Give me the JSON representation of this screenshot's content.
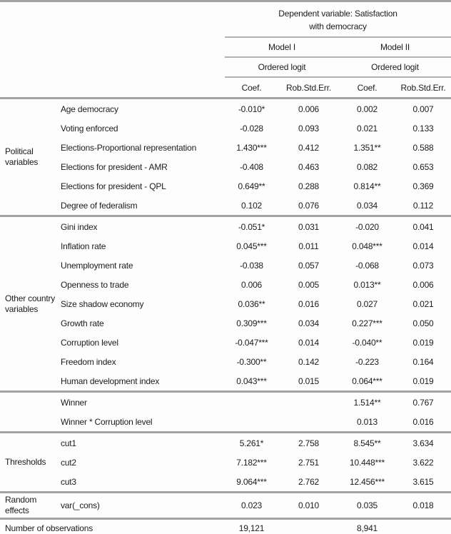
{
  "header": {
    "dep_var_line1": "Dependent variable: Satisfaction",
    "dep_var_line2": "with democracy",
    "models": [
      "Model I",
      "Model II"
    ],
    "estimators": [
      "Ordered logit",
      "Ordered logit"
    ],
    "stat_headers": [
      "Coef.",
      "Rob.Std.Err.",
      "Coef.",
      "Rob.Std.Err."
    ]
  },
  "sections": [
    {
      "group": "Political variables",
      "rows": [
        {
          "label": "Age democracy",
          "m1_coef": "-0.010*",
          "m1_se": "0.006",
          "m2_coef": "0.002",
          "m2_se": "0.007"
        },
        {
          "label": "Voting enforced",
          "m1_coef": "-0.028",
          "m1_se": "0.093",
          "m2_coef": "0.021",
          "m2_se": "0.133"
        },
        {
          "label": "Elections-Proportional representation",
          "m1_coef": "1.430***",
          "m1_se": "0.412",
          "m2_coef": "1.351**",
          "m2_se": "0.588"
        },
        {
          "label": "Elections for president - AMR",
          "m1_coef": "-0.408",
          "m1_se": "0.463",
          "m2_coef": "0.082",
          "m2_se": "0.653"
        },
        {
          "label": "Elections for president - QPL",
          "m1_coef": "0.649**",
          "m1_se": "0.288",
          "m2_coef": "0.814**",
          "m2_se": "0.369"
        },
        {
          "label": "Degree of federalism",
          "m1_coef": "0.102",
          "m1_se": "0.076",
          "m2_coef": "0.034",
          "m2_se": "0.112"
        }
      ]
    },
    {
      "group": "Other country variables",
      "rows": [
        {
          "label": "Gini index",
          "m1_coef": "-0.051*",
          "m1_se": "0.031",
          "m2_coef": "-0.020",
          "m2_se": "0.041"
        },
        {
          "label": "Inflation rate",
          "m1_coef": "0.045***",
          "m1_se": "0.011",
          "m2_coef": "0.048***",
          "m2_se": "0.014"
        },
        {
          "label": "Unemployment rate",
          "m1_coef": "-0.038",
          "m1_se": "0.057",
          "m2_coef": "-0.068",
          "m2_se": "0.073"
        },
        {
          "label": "Openness to trade",
          "m1_coef": "0.006",
          "m1_se": "0.005",
          "m2_coef": "0.013**",
          "m2_se": "0.006"
        },
        {
          "label": "Size shadow economy",
          "m1_coef": "0.036**",
          "m1_se": "0.016",
          "m2_coef": "0.027",
          "m2_se": "0.021"
        },
        {
          "label": "Growth rate",
          "m1_coef": "0.309***",
          "m1_se": "0.034",
          "m2_coef": "0.227***",
          "m2_se": "0.050"
        },
        {
          "label": "Corruption level",
          "m1_coef": "-0.047***",
          "m1_se": "0.014",
          "m2_coef": "-0.040**",
          "m2_se": "0.019"
        },
        {
          "label": "Freedom index",
          "m1_coef": "-0.300**",
          "m1_se": "0.142",
          "m2_coef": "-0.223",
          "m2_se": "0.164"
        },
        {
          "label": "Human development index",
          "m1_coef": "0.043***",
          "m1_se": "0.015",
          "m2_coef": "0.064***",
          "m2_se": "0.019"
        }
      ]
    },
    {
      "group": "",
      "rows": [
        {
          "label": "Winner",
          "m1_coef": "",
          "m1_se": "",
          "m2_coef": "1.514**",
          "m2_se": "0.767"
        },
        {
          "label": "Winner * Corruption level",
          "m1_coef": "",
          "m1_se": "",
          "m2_coef": "0.013",
          "m2_se": "0.016"
        }
      ]
    },
    {
      "group": "Thresholds",
      "rows": [
        {
          "label": "cut1",
          "m1_coef": "5.261*",
          "m1_se": "2.758",
          "m2_coef": "8.545**",
          "m2_se": "3.634"
        },
        {
          "label": "cut2",
          "m1_coef": "7.182***",
          "m1_se": "2.751",
          "m2_coef": "10.448***",
          "m2_se": "3.622"
        },
        {
          "label": "cut3",
          "m1_coef": "9.064***",
          "m1_se": "2.762",
          "m2_coef": "12.456***",
          "m2_se": "3.615"
        }
      ]
    },
    {
      "group": "Random effects",
      "tall": true,
      "rows": [
        {
          "label": "var(_cons)",
          "m1_coef": "0.023",
          "m1_se": "0.010",
          "m2_coef": "0.035",
          "m2_se": "0.018"
        }
      ]
    }
  ],
  "footer": {
    "label": "Number of observations",
    "m1": "19,121",
    "m2": "8,941"
  },
  "colors": {
    "rule_gray": "#a4a4a4",
    "header_rule_gray": "#b2b2b2",
    "text": "#1c1c1c",
    "background": "#fdfdfd"
  }
}
